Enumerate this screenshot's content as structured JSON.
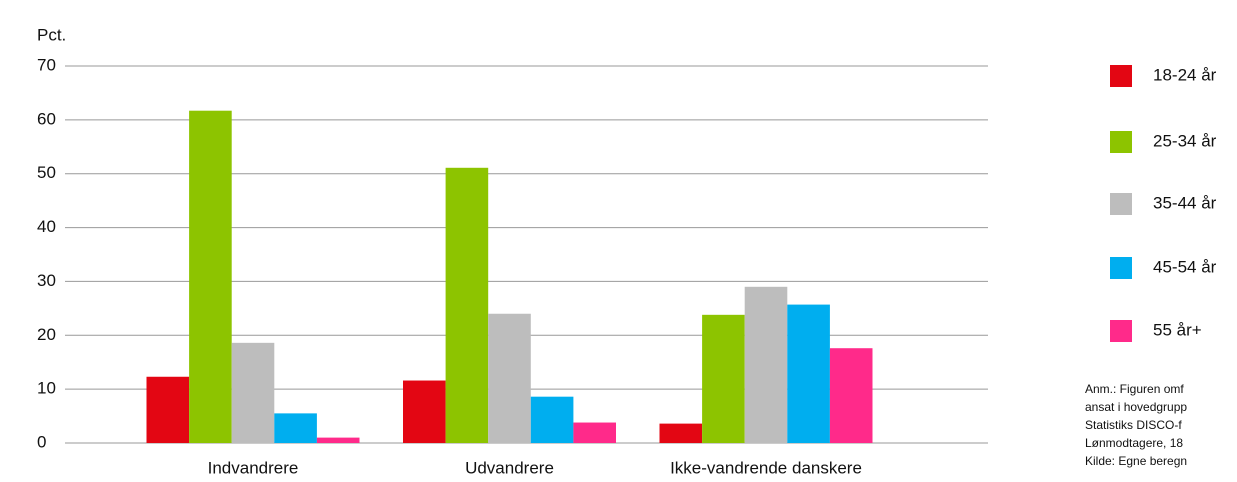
{
  "chart_data": {
    "type": "bar",
    "y_label": "Pct.",
    "categories": [
      "Indvandrere",
      "Udvandrere",
      "Ikke-vandrende danskere"
    ],
    "series": [
      {
        "name": "18-24 år",
        "color": "#e30613",
        "values": [
          12.3,
          11.6,
          3.6
        ]
      },
      {
        "name": "25-34 år",
        "color": "#8dc400",
        "values": [
          61.7,
          51.1,
          23.8
        ]
      },
      {
        "name": "35-44 år",
        "color": "#bdbdbd",
        "values": [
          18.6,
          24.0,
          29.0
        ]
      },
      {
        "name": "45-54 år",
        "color": "#00aeef",
        "values": [
          5.5,
          8.6,
          25.7
        ]
      },
      {
        "name": "55 år+",
        "color": "#ff2a8a",
        "values": [
          1.0,
          3.8,
          17.6
        ]
      }
    ],
    "ylim": [
      0,
      70
    ],
    "yticks": [
      0,
      10,
      20,
      30,
      40,
      50,
      60,
      70
    ],
    "grid": true,
    "note": [
      "Anm.: Figuren omf",
      "ansat i hovedgrupp",
      "Statistiks DISCO-f",
      "Lønmodtagere, 18",
      "Kilde: Egne beregn"
    ]
  }
}
